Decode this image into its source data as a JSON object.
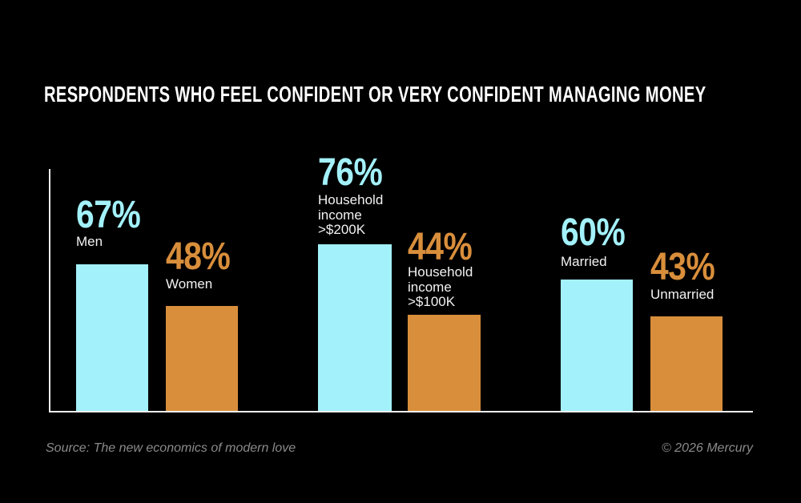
{
  "title": "RESPONDENTS WHO FEEL CONFIDENT OR VERY CONFIDENT MANAGING MONEY",
  "colors": {
    "background": "#000000",
    "cyan": "#A3F1FA",
    "orange": "#D98E3B",
    "label_text": "#F2F2F2",
    "title_text": "#FFFFFF",
    "muted_text": "#8A8A8A",
    "axis": "#EFEFEF"
  },
  "footer": {
    "source": "Source: The new economics of modern love",
    "copyright": "© 2026 Mercury"
  },
  "chart_data": {
    "type": "bar",
    "title": "RESPONDENTS WHO FEEL CONFIDENT OR VERY CONFIDENT MANAGING MONEY",
    "unit": "%",
    "ylim": [
      0,
      100
    ],
    "grid": false,
    "legend": false,
    "categories": [
      "Men",
      "Women",
      "Household income >$200K",
      "Household income >$100K",
      "Married",
      "Unmarried"
    ],
    "values": [
      67,
      48,
      76,
      44,
      60,
      43
    ],
    "groups": [
      {
        "label": "Men",
        "display_label": "Men",
        "value": 67,
        "pct": "67%",
        "color": "cyan"
      },
      {
        "label": "Women",
        "display_label": "Women",
        "value": 48,
        "pct": "48%",
        "color": "orange"
      },
      {
        "label": "Household income >$200K",
        "display_label": "Household\nincome\n>$200K",
        "value": 76,
        "pct": "76%",
        "color": "cyan"
      },
      {
        "label": "Household income >$100K",
        "display_label": "Household\nincome\n>$100K",
        "value": 44,
        "pct": "44%",
        "color": "orange"
      },
      {
        "label": "Married",
        "display_label": "Married",
        "value": 60,
        "pct": "60%",
        "color": "cyan"
      },
      {
        "label": "Unmarried",
        "display_label": "Unmarried",
        "value": 43,
        "pct": "43%",
        "color": "orange"
      }
    ]
  }
}
